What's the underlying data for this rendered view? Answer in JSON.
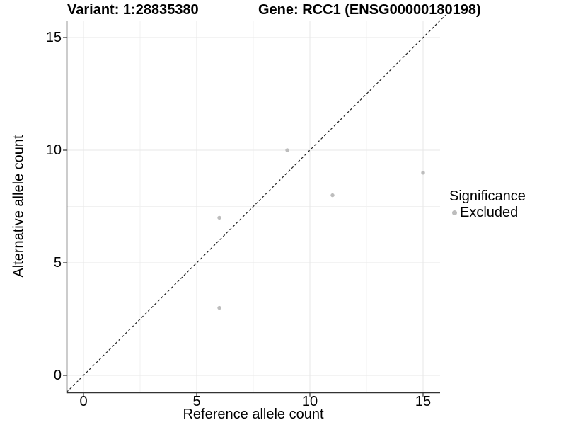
{
  "chart_data": {
    "type": "scatter",
    "title_left": "Variant: 1:28835380",
    "title_right": "Gene: RCC1 (ENSG00000180198)",
    "xlabel": "Reference allele count",
    "ylabel": "Alternative allele count",
    "xlim": [
      -0.75,
      15.75
    ],
    "ylim": [
      -0.75,
      15.75
    ],
    "x_ticks": [
      0,
      5,
      10,
      15
    ],
    "y_ticks": [
      0,
      5,
      10,
      15
    ],
    "minor_ticks": [
      2.5,
      7.5,
      12.5
    ],
    "grid": true,
    "identity_line": {
      "style": "dashed",
      "from": [
        -0.75,
        -0.75
      ],
      "to": [
        16,
        16
      ]
    },
    "series": [
      {
        "name": "Excluded",
        "color": "#bdbdbd",
        "points": [
          [
            6,
            3
          ],
          [
            6,
            7
          ],
          [
            9,
            10
          ],
          [
            11,
            8
          ],
          [
            15,
            9
          ]
        ]
      }
    ],
    "legend": {
      "title": "Significance",
      "position": "right",
      "items": [
        {
          "label": "Excluded",
          "color": "#bdbdbd"
        }
      ]
    }
  },
  "colors": {
    "background": "#ffffff",
    "grid_major": "#e7e7e7",
    "grid_minor": "#f1f1f1",
    "axis": "#333333",
    "dashed_line": "#222222",
    "text": "#000000",
    "point": "#bdbdbd"
  }
}
